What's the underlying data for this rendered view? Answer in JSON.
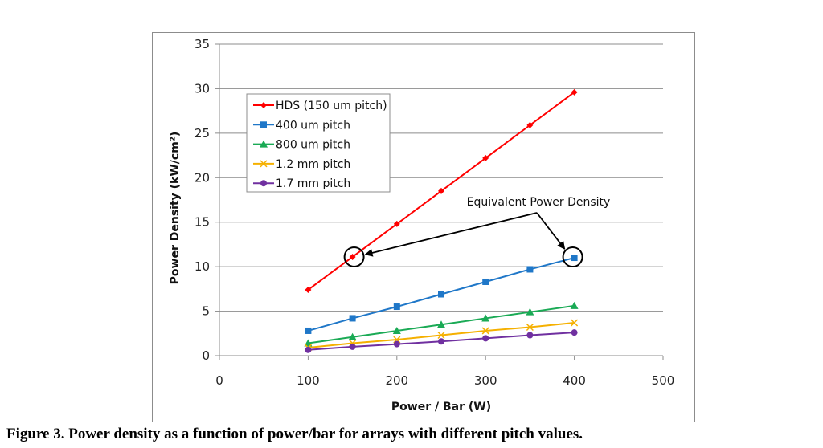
{
  "caption": "Figure 3.  Power density as a function of power/bar for arrays with different pitch values.",
  "chart_data": {
    "type": "line",
    "xlabel": "Power / Bar (W)",
    "ylabel": "Power Density (kW/cm²)",
    "xlim": [
      0,
      500
    ],
    "ylim": [
      0,
      35
    ],
    "xticks": [
      0,
      100,
      200,
      300,
      400,
      500
    ],
    "yticks": [
      0,
      5,
      10,
      15,
      20,
      25,
      30,
      35
    ],
    "grid": "horizontal",
    "legend_position": "top-left",
    "x": [
      100,
      150,
      200,
      250,
      300,
      350,
      400
    ],
    "series": [
      {
        "name": "HDS (150 um pitch)",
        "color": "#ff0000",
        "marker": "diamond",
        "values": [
          7.4,
          11.1,
          14.8,
          18.5,
          22.2,
          25.9,
          29.6
        ]
      },
      {
        "name": "400 um pitch",
        "color": "#1f77c8",
        "marker": "square",
        "values": [
          2.8,
          4.2,
          5.5,
          6.9,
          8.3,
          9.7,
          11.0
        ]
      },
      {
        "name": "800 um pitch",
        "color": "#1aaa55",
        "marker": "triangle",
        "values": [
          1.4,
          2.1,
          2.8,
          3.5,
          4.2,
          4.9,
          5.6
        ]
      },
      {
        "name": "1.2 mm pitch",
        "color": "#f5b000",
        "marker": "x",
        "values": [
          0.9,
          1.4,
          1.8,
          2.3,
          2.8,
          3.2,
          3.7
        ]
      },
      {
        "name": "1.7 mm pitch",
        "color": "#7030a0",
        "marker": "circle",
        "values": [
          0.65,
          1.0,
          1.3,
          1.6,
          1.95,
          2.3,
          2.6
        ]
      }
    ],
    "annotations": [
      {
        "text": "Equivalent Power Density",
        "points": [
          [
            150,
            11.1
          ],
          [
            400,
            11.0
          ]
        ]
      }
    ]
  }
}
